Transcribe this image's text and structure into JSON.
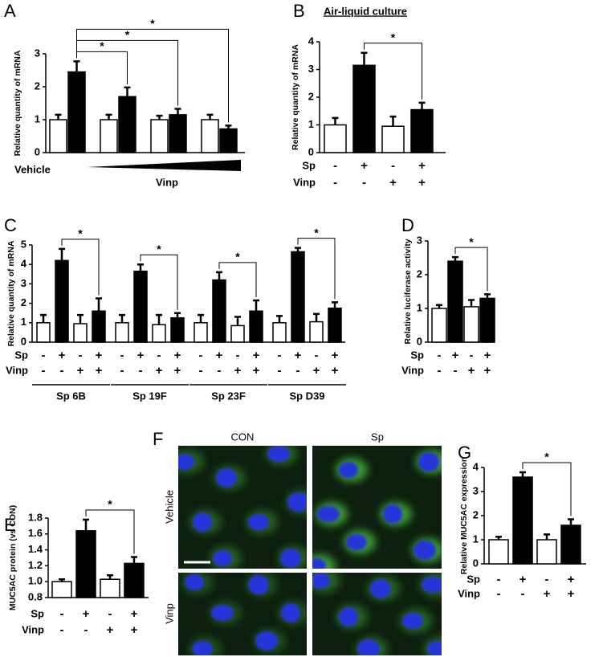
{
  "chart_data": [
    {
      "type": "bar",
      "panel_label": "A",
      "ylabel": "Relative quantity of mRNA",
      "values": [
        1.0,
        2.45,
        1.0,
        1.7,
        1.0,
        1.15,
        1.0,
        0.72
      ],
      "errors": [
        0.15,
        0.32,
        0.15,
        0.28,
        0.12,
        0.18,
        0.15,
        0.1
      ],
      "colors": [
        "#ffffff",
        "#000000"
      ],
      "ylim": [
        0,
        3
      ],
      "yticks": [
        0,
        1,
        2,
        3
      ],
      "x_labels": [
        "Vehicle",
        "Vinp"
      ],
      "significance": [
        {
          "from": 1,
          "to": 3,
          "label": "*"
        },
        {
          "from": 1,
          "to": 5,
          "label": "*"
        },
        {
          "from": 1,
          "to": 7,
          "label": "*"
        }
      ]
    },
    {
      "type": "bar",
      "panel_label": "B",
      "title": "Air-liquid culture",
      "ylabel": "Relative quantity of mRNA",
      "values": [
        1.0,
        3.15,
        0.95,
        1.55
      ],
      "errors": [
        0.25,
        0.45,
        0.35,
        0.25
      ],
      "colors": [
        "#ffffff",
        "#000000"
      ],
      "ylim": [
        0,
        4
      ],
      "yticks": [
        0,
        1,
        2,
        3,
        4
      ],
      "conditions": [
        {
          "name": "Sp",
          "signs": [
            "-",
            "+",
            "-",
            "+"
          ]
        },
        {
          "name": "Vinp",
          "signs": [
            "-",
            "-",
            "+",
            "+"
          ]
        }
      ],
      "significance": [
        {
          "from": 1,
          "to": 3,
          "label": "*"
        }
      ]
    },
    {
      "type": "bar",
      "panel_label": "C",
      "ylabel": "Relative quantity of mRNA",
      "values": [
        1.0,
        4.2,
        0.95,
        1.6,
        1.0,
        3.65,
        0.9,
        1.25,
        1.0,
        3.2,
        0.85,
        1.6,
        1.0,
        4.65,
        1.05,
        1.75
      ],
      "errors": [
        0.4,
        0.6,
        0.45,
        0.65,
        0.4,
        0.35,
        0.5,
        0.25,
        0.4,
        0.4,
        0.45,
        0.55,
        0.35,
        0.2,
        0.4,
        0.3
      ],
      "colors": [
        "#ffffff",
        "#000000"
      ],
      "ylim": [
        0,
        5
      ],
      "yticks": [
        0,
        1,
        2,
        3,
        4,
        5
      ],
      "conditions": [
        {
          "name": "Sp",
          "signs": [
            "-",
            "+",
            "-",
            "+",
            "-",
            "+",
            "-",
            "+",
            "-",
            "+",
            "-",
            "+",
            "-",
            "+",
            "-",
            "+"
          ]
        },
        {
          "name": "Vinp",
          "signs": [
            "-",
            "-",
            "+",
            "+",
            "-",
            "-",
            "+",
            "+",
            "-",
            "-",
            "+",
            "+",
            "-",
            "-",
            "+",
            "+"
          ]
        }
      ],
      "groups": [
        "Sp 6B",
        "Sp 19F",
        "Sp 23F",
        "Sp D39"
      ],
      "significance": [
        {
          "from": 1,
          "to": 3,
          "label": "*"
        },
        {
          "from": 5,
          "to": 7,
          "label": "*"
        },
        {
          "from": 9,
          "to": 11,
          "label": "*"
        },
        {
          "from": 13,
          "to": 15,
          "label": "*"
        }
      ]
    },
    {
      "type": "bar",
      "panel_label": "D",
      "ylabel": "Relative luciferase activity",
      "values": [
        1.0,
        2.4,
        1.05,
        1.3
      ],
      "errors": [
        0.1,
        0.12,
        0.2,
        0.12
      ],
      "colors": [
        "#ffffff",
        "#000000"
      ],
      "ylim": [
        0,
        3
      ],
      "yticks": [
        0,
        1,
        2,
        3
      ],
      "conditions": [
        {
          "name": "Sp",
          "signs": [
            "-",
            "+",
            "-",
            "+"
          ]
        },
        {
          "name": "Vinp",
          "signs": [
            "-",
            "-",
            "+",
            "+"
          ]
        }
      ],
      "significance": [
        {
          "from": 1,
          "to": 3,
          "label": "*"
        }
      ]
    },
    {
      "type": "bar",
      "panel_label": "E",
      "ylabel": "MUC5AC protein (vs CON)",
      "values": [
        1.0,
        1.64,
        1.03,
        1.23
      ],
      "errors": [
        0.03,
        0.14,
        0.05,
        0.08
      ],
      "colors": [
        "#ffffff",
        "#000000"
      ],
      "ylim": [
        0.8,
        1.8
      ],
      "yticks": [
        0.8,
        {
          "value": 1,
          "label": "1.0"
        },
        1.2,
        1.4,
        1.6,
        1.8
      ],
      "conditions": [
        {
          "name": "Sp",
          "signs": [
            "-",
            "+",
            "-",
            "+"
          ]
        },
        {
          "name": "Vinp",
          "signs": [
            "-",
            "-",
            "+",
            "+"
          ]
        }
      ],
      "significance": [
        {
          "from": 1,
          "to": 3,
          "label": "*"
        }
      ]
    },
    {
      "type": "image",
      "panel_label": "F",
      "columns": [
        "CON",
        "Sp"
      ],
      "rows": [
        "Vehicle",
        "Vinp"
      ]
    },
    {
      "type": "bar",
      "panel_label": "G",
      "ylabel": "Relative MUC5AC expression",
      "values": [
        1.0,
        3.6,
        1.0,
        1.6
      ],
      "errors": [
        0.12,
        0.2,
        0.22,
        0.25
      ],
      "colors": [
        "#ffffff",
        "#000000"
      ],
      "ylim": [
        0,
        4
      ],
      "yticks": [
        0,
        1,
        2,
        3,
        4
      ],
      "conditions": [
        {
          "name": "Sp",
          "signs": [
            "-",
            "+",
            "-",
            "+"
          ]
        },
        {
          "name": "Vinp",
          "signs": [
            "-",
            "-",
            "+",
            "+"
          ]
        }
      ],
      "significance": [
        {
          "from": 1,
          "to": 3,
          "label": "*"
        }
      ]
    }
  ]
}
